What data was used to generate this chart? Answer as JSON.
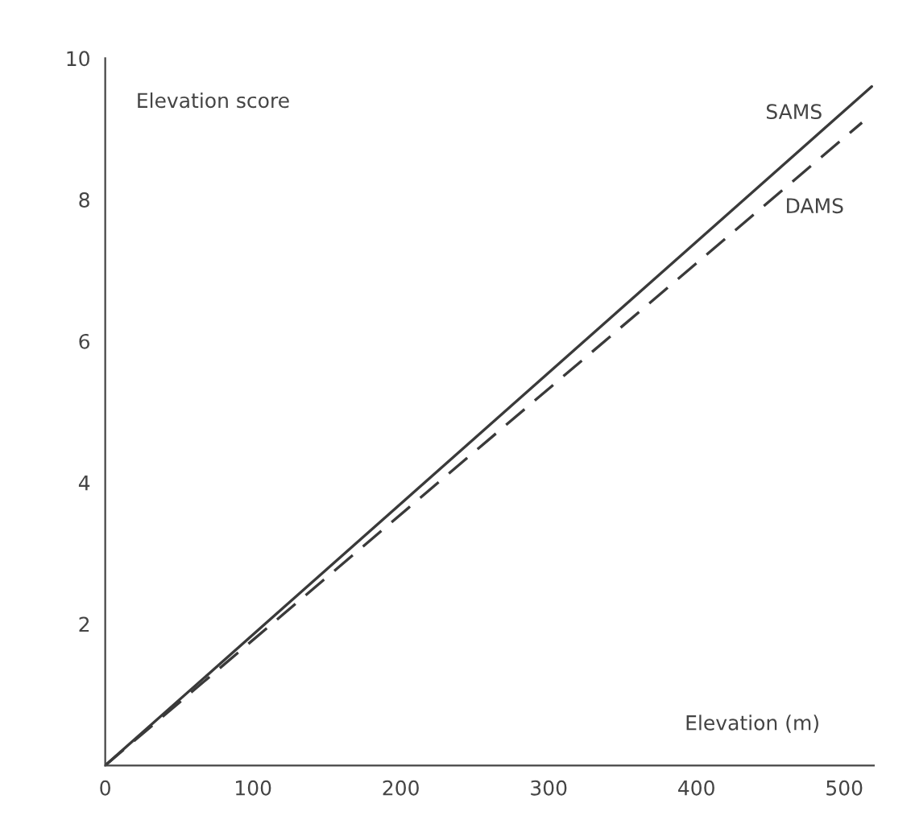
{
  "chart_data": {
    "type": "line",
    "xlabel": "Elevation (m)",
    "ylabel": "Elevation score",
    "xlim": [
      0,
      520
    ],
    "xticks": [
      0,
      100,
      200,
      300,
      400,
      500
    ],
    "ylim": [
      0,
      10
    ],
    "yticks": [
      {
        "value": 2,
        "label": "2"
      },
      {
        "value": 4,
        "label": "4"
      },
      {
        "value": 6,
        "label": "6"
      },
      {
        "value": 8,
        "label": "8"
      },
      {
        "value": 10,
        "label": "10"
      }
    ],
    "grid": false,
    "legend": false,
    "marker": "none",
    "series": [
      {
        "name": "SAMS",
        "color": "#3a3a3a",
        "line_style": "solid",
        "x": [
          0,
          518.6
        ],
        "values": [
          0,
          9.6
        ]
      },
      {
        "name": "DAMS",
        "color": "#3a3a3a",
        "line_style": "dashed",
        "x": [
          0,
          512
        ],
        "values": [
          0,
          9.09
        ]
      }
    ]
  }
}
